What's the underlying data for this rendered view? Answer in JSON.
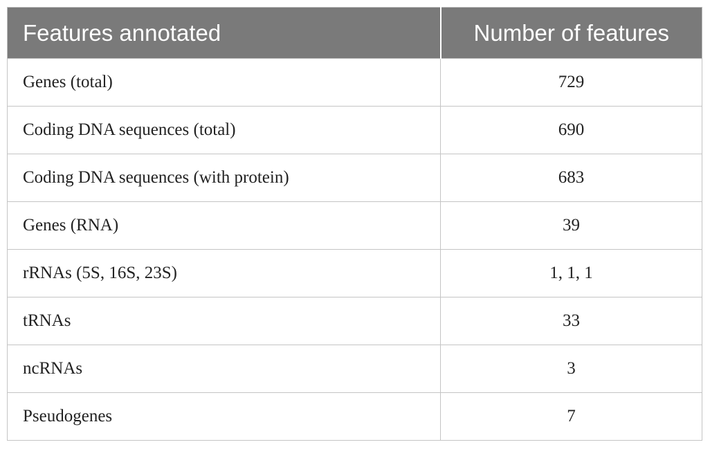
{
  "table": {
    "headers": [
      "Features annotated",
      "Number of features"
    ],
    "rows": [
      {
        "feature": "Genes (total)",
        "count": "729"
      },
      {
        "feature": "Coding DNA sequences (total)",
        "count": "690"
      },
      {
        "feature": "Coding DNA sequences (with protein)",
        "count": "683"
      },
      {
        "feature": "Genes (RNA)",
        "count": "39"
      },
      {
        "feature": "rRNAs (5S, 16S, 23S)",
        "count": "1, 1, 1"
      },
      {
        "feature": "tRNAs",
        "count": "33"
      },
      {
        "feature": "ncRNAs",
        "count": "3"
      },
      {
        "feature": "Pseudogenes",
        "count": "7"
      }
    ]
  },
  "colors": {
    "header_background": "#7a7a7a",
    "header_text": "#ffffff",
    "grid_line": "#c4c4c4"
  }
}
